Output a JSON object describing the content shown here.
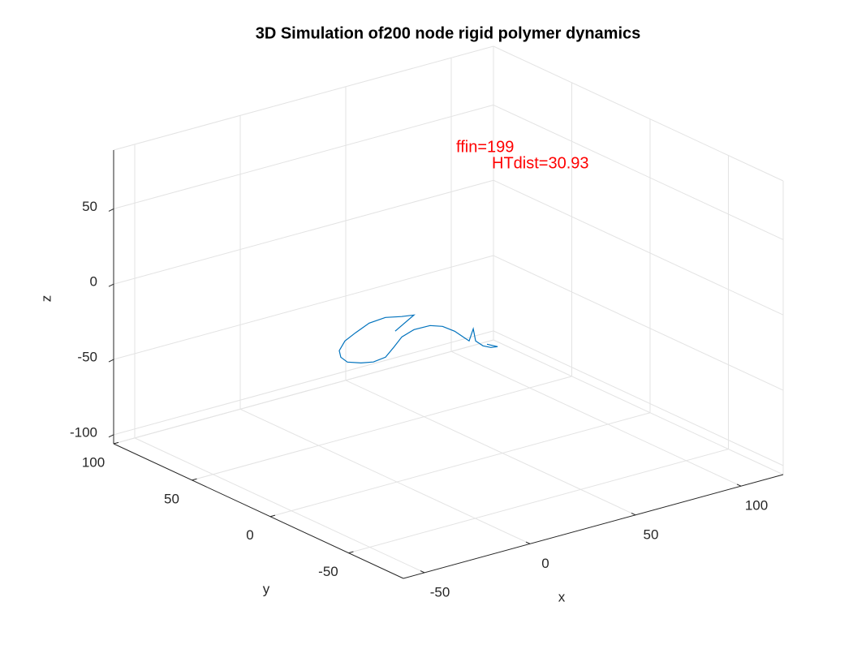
{
  "chart_data": {
    "type": "line3d",
    "title": "3D Simulation of200 node rigid polymer dynamics",
    "xlabel": "x",
    "ylabel": "y",
    "zlabel": "z",
    "xlim": [
      -60,
      120
    ],
    "ylim": [
      -85,
      100
    ],
    "zlim": [
      -106,
      89
    ],
    "xticks": [
      -50,
      0,
      50,
      100
    ],
    "yticks": [
      -50,
      0,
      50,
      100
    ],
    "zticks": [
      -100,
      -50,
      0,
      50
    ],
    "grid": true,
    "series": [
      {
        "color": "#0072bd",
        "x": [
          -6.2,
          9.8,
          5.1,
          -0.3,
          -8.8,
          -19.1,
          -27.5,
          -35.4,
          -39.1,
          -40.3,
          -36.8,
          -32.5,
          -25.8,
          -17.1,
          -7.9,
          0.4,
          7.8,
          11.0,
          11.5,
          10.2,
          9.6,
          18.6,
          11.5,
          10.6,
          11.9,
          14.4,
          12.8
        ],
        "y": [
          -7.3,
          2.3,
          3.8,
          6.9,
          5.8,
          0.7,
          -3.9,
          -10.9,
          -16.9,
          -22.7,
          -26.7,
          -28.8,
          -27.5,
          -21.0,
          -13.8,
          -10.4,
          -10.7,
          -14.3,
          -21.4,
          -29.3,
          -33.2,
          -23.7,
          -34.8,
          -40.7,
          -44.0,
          -44.9,
          -40.3
        ],
        "z": [
          0,
          0,
          0,
          0,
          0,
          0,
          0,
          0,
          0,
          0,
          0,
          0,
          0,
          0,
          0,
          0,
          0,
          0,
          0,
          0,
          0,
          0,
          0,
          0,
          0,
          0,
          0
        ]
      }
    ],
    "annotations": [
      "ffin=199",
      "HTdist=30.93"
    ],
    "annotation_color": "#ff0000"
  }
}
